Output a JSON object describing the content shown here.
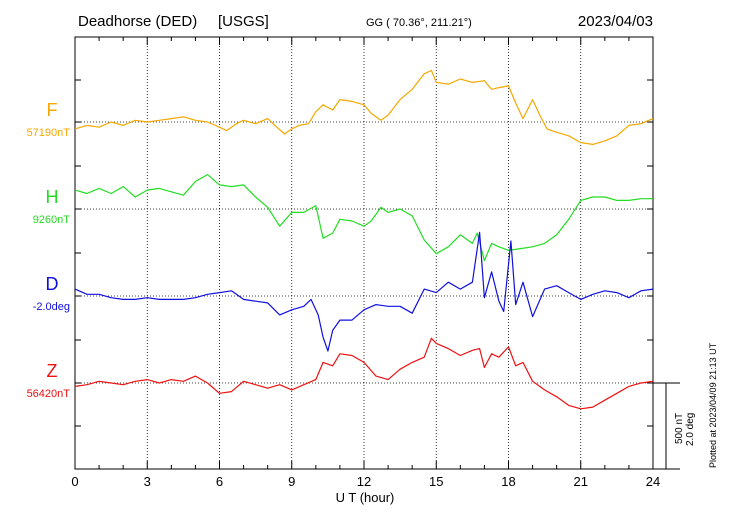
{
  "header": {
    "station": "Deadhorse (DED)",
    "source": "[USGS]",
    "coords": "GG ( 70.36°, 211.21°)",
    "date": "2023/04/03"
  },
  "footer": {
    "xlabel": "U T (hour)",
    "plotted_note": "Plotted at 2023/04/09 21:13 UT",
    "scale_nT": "500 nT",
    "scale_deg": "2.0 deg"
  },
  "colors": {
    "F": "#f5a800",
    "H": "#22dd22",
    "D": "#1010dd",
    "Z": "#ee1111",
    "axis": "#000000",
    "grid": "#000000"
  },
  "chart_data": {
    "type": "line",
    "x_unit": "hour UT",
    "xlim": [
      0,
      24
    ],
    "xticks": [
      0,
      3,
      6,
      9,
      12,
      15,
      18,
      21,
      24
    ],
    "grid": true,
    "scale_bar": {
      "nT": 500,
      "deg": 2.0
    },
    "series": [
      {
        "name": "F",
        "baseline_label": "57190nT",
        "baseline": 57190,
        "unit": "nT",
        "points": [
          [
            0,
            -40
          ],
          [
            0.5,
            -20
          ],
          [
            1,
            -30
          ],
          [
            1.5,
            0
          ],
          [
            2,
            -20
          ],
          [
            2.5,
            10
          ],
          [
            3,
            0
          ],
          [
            3.5,
            10
          ],
          [
            4,
            20
          ],
          [
            4.5,
            30
          ],
          [
            5,
            10
          ],
          [
            5.5,
            0
          ],
          [
            6,
            -30
          ],
          [
            6.3,
            -50
          ],
          [
            6.7,
            -10
          ],
          [
            7,
            10
          ],
          [
            7.5,
            -10
          ],
          [
            8,
            20
          ],
          [
            8.3,
            -20
          ],
          [
            8.7,
            -70
          ],
          [
            9,
            -40
          ],
          [
            9.3,
            -20
          ],
          [
            9.7,
            -10
          ],
          [
            10,
            60
          ],
          [
            10.3,
            100
          ],
          [
            10.7,
            70
          ],
          [
            11,
            130
          ],
          [
            11.5,
            120
          ],
          [
            12,
            100
          ],
          [
            12.3,
            50
          ],
          [
            12.7,
            10
          ],
          [
            13,
            40
          ],
          [
            13.5,
            130
          ],
          [
            14,
            190
          ],
          [
            14.5,
            280
          ],
          [
            14.8,
            300
          ],
          [
            15,
            230
          ],
          [
            15.5,
            220
          ],
          [
            16,
            250
          ],
          [
            16.5,
            230
          ],
          [
            17,
            240
          ],
          [
            17.3,
            190
          ],
          [
            17.6,
            200
          ],
          [
            18,
            210
          ],
          [
            18.3,
            110
          ],
          [
            18.6,
            20
          ],
          [
            19,
            130
          ],
          [
            19.3,
            40
          ],
          [
            19.6,
            -40
          ],
          [
            20,
            -60
          ],
          [
            20.5,
            -80
          ],
          [
            21,
            -120
          ],
          [
            21.5,
            -130
          ],
          [
            22,
            -110
          ],
          [
            22.5,
            -80
          ],
          [
            23,
            -20
          ],
          [
            23.5,
            -10
          ],
          [
            24,
            20
          ]
        ]
      },
      {
        "name": "H",
        "baseline_label": "9260nT",
        "baseline": 9260,
        "unit": "nT",
        "points": [
          [
            0,
            110
          ],
          [
            0.5,
            90
          ],
          [
            1,
            120
          ],
          [
            1.5,
            90
          ],
          [
            2,
            130
          ],
          [
            2.5,
            70
          ],
          [
            3,
            110
          ],
          [
            3.5,
            120
          ],
          [
            4,
            100
          ],
          [
            4.5,
            80
          ],
          [
            5,
            160
          ],
          [
            5.5,
            200
          ],
          [
            6,
            140
          ],
          [
            6.5,
            130
          ],
          [
            7,
            140
          ],
          [
            7.5,
            70
          ],
          [
            8,
            10
          ],
          [
            8.5,
            -100
          ],
          [
            9,
            -20
          ],
          [
            9.5,
            -20
          ],
          [
            10,
            20
          ],
          [
            10.3,
            -170
          ],
          [
            10.7,
            -140
          ],
          [
            11,
            -60
          ],
          [
            11.5,
            -70
          ],
          [
            12,
            -100
          ],
          [
            12.3,
            -70
          ],
          [
            12.7,
            10
          ],
          [
            13,
            -20
          ],
          [
            13.5,
            0
          ],
          [
            14,
            -40
          ],
          [
            14.5,
            -180
          ],
          [
            15,
            -260
          ],
          [
            15.5,
            -220
          ],
          [
            16,
            -150
          ],
          [
            16.5,
            -200
          ],
          [
            16.7,
            -140
          ],
          [
            17,
            -300
          ],
          [
            17.3,
            -200
          ],
          [
            17.6,
            -220
          ],
          [
            18,
            -240
          ],
          [
            18.5,
            -230
          ],
          [
            19,
            -220
          ],
          [
            19.5,
            -200
          ],
          [
            20,
            -150
          ],
          [
            20.5,
            -60
          ],
          [
            21,
            50
          ],
          [
            21.5,
            70
          ],
          [
            22,
            70
          ],
          [
            22.5,
            50
          ],
          [
            23,
            50
          ],
          [
            23.5,
            60
          ],
          [
            24,
            60
          ]
        ]
      },
      {
        "name": "D",
        "baseline_label": "-2.0deg",
        "baseline": -2.0,
        "unit": "deg",
        "points": [
          [
            0,
            40
          ],
          [
            0.5,
            10
          ],
          [
            1,
            10
          ],
          [
            1.5,
            -10
          ],
          [
            2,
            -20
          ],
          [
            2.5,
            -20
          ],
          [
            3,
            -10
          ],
          [
            3.5,
            -20
          ],
          [
            4,
            -20
          ],
          [
            4.5,
            -20
          ],
          [
            5,
            -10
          ],
          [
            5.5,
            10
          ],
          [
            6,
            20
          ],
          [
            6.5,
            30
          ],
          [
            7,
            -20
          ],
          [
            7.5,
            -30
          ],
          [
            8,
            -40
          ],
          [
            8.5,
            -110
          ],
          [
            9,
            -80
          ],
          [
            9.5,
            -60
          ],
          [
            9.8,
            -20
          ],
          [
            10.1,
            -110
          ],
          [
            10.3,
            -240
          ],
          [
            10.5,
            -320
          ],
          [
            10.7,
            -200
          ],
          [
            11,
            -140
          ],
          [
            11.5,
            -140
          ],
          [
            12,
            -80
          ],
          [
            12.5,
            -50
          ],
          [
            13,
            -60
          ],
          [
            13.5,
            -60
          ],
          [
            14,
            -100
          ],
          [
            14.5,
            40
          ],
          [
            15,
            20
          ],
          [
            15.5,
            80
          ],
          [
            16,
            40
          ],
          [
            16.5,
            80
          ],
          [
            16.8,
            370
          ],
          [
            17,
            -10
          ],
          [
            17.3,
            140
          ],
          [
            17.6,
            -30
          ],
          [
            17.8,
            -90
          ],
          [
            18.1,
            320
          ],
          [
            18.3,
            -50
          ],
          [
            18.6,
            80
          ],
          [
            19,
            -120
          ],
          [
            19.5,
            40
          ],
          [
            20,
            60
          ],
          [
            20.5,
            20
          ],
          [
            21,
            -20
          ],
          [
            21.5,
            10
          ],
          [
            22,
            30
          ],
          [
            22.5,
            20
          ],
          [
            23,
            -10
          ],
          [
            23.5,
            30
          ],
          [
            24,
            40
          ]
        ]
      },
      {
        "name": "Z",
        "baseline_label": "56420nT",
        "baseline": 56420,
        "unit": "nT",
        "points": [
          [
            0,
            -20
          ],
          [
            0.5,
            -10
          ],
          [
            1,
            10
          ],
          [
            1.5,
            0
          ],
          [
            2,
            -10
          ],
          [
            2.5,
            10
          ],
          [
            3,
            20
          ],
          [
            3.5,
            0
          ],
          [
            4,
            20
          ],
          [
            4.5,
            10
          ],
          [
            5,
            40
          ],
          [
            5.5,
            0
          ],
          [
            6,
            -60
          ],
          [
            6.5,
            -50
          ],
          [
            7,
            10
          ],
          [
            7.5,
            -10
          ],
          [
            8,
            -30
          ],
          [
            8.5,
            -10
          ],
          [
            9,
            -40
          ],
          [
            9.5,
            -10
          ],
          [
            10,
            20
          ],
          [
            10.3,
            120
          ],
          [
            10.7,
            100
          ],
          [
            11,
            170
          ],
          [
            11.5,
            160
          ],
          [
            12,
            120
          ],
          [
            12.5,
            40
          ],
          [
            13,
            20
          ],
          [
            13.5,
            80
          ],
          [
            14,
            120
          ],
          [
            14.5,
            150
          ],
          [
            14.8,
            260
          ],
          [
            15,
            230
          ],
          [
            15.5,
            200
          ],
          [
            16,
            160
          ],
          [
            16.5,
            190
          ],
          [
            16.8,
            200
          ],
          [
            17,
            90
          ],
          [
            17.3,
            170
          ],
          [
            17.6,
            150
          ],
          [
            18,
            210
          ],
          [
            18.3,
            100
          ],
          [
            18.6,
            120
          ],
          [
            19,
            10
          ],
          [
            19.5,
            -40
          ],
          [
            20,
            -80
          ],
          [
            20.5,
            -130
          ],
          [
            21,
            -150
          ],
          [
            21.5,
            -140
          ],
          [
            22,
            -100
          ],
          [
            22.5,
            -60
          ],
          [
            23,
            -20
          ],
          [
            23.5,
            0
          ],
          [
            24,
            10
          ]
        ]
      }
    ]
  }
}
